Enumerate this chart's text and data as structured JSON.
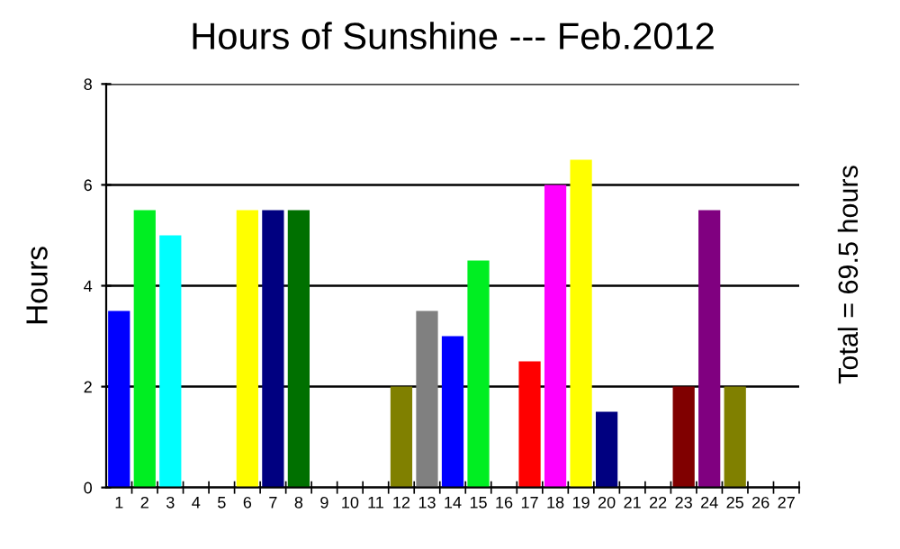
{
  "chart_data": {
    "type": "bar",
    "title": "Hours of Sunshine --- Feb.2012",
    "ylabel": "Hours",
    "annotations": [
      "Total = 69.5 hours"
    ],
    "categories": [
      "1",
      "2",
      "3",
      "4",
      "5",
      "6",
      "7",
      "8",
      "9",
      "10",
      "11",
      "12",
      "13",
      "14",
      "15",
      "16",
      "17",
      "18",
      "19",
      "20",
      "21",
      "22",
      "23",
      "24",
      "25",
      "26",
      "27"
    ],
    "values": [
      3.5,
      5.5,
      5,
      0,
      0,
      5.5,
      5.5,
      5.5,
      0,
      0,
      0,
      2,
      3.5,
      3,
      4.5,
      0,
      2.5,
      6,
      6.5,
      1.5,
      0,
      0,
      2,
      5.5,
      2,
      0,
      0
    ],
    "colors": [
      "#0000ff",
      "#00ee22",
      "#00ffff",
      "#000000",
      "#000000",
      "#ffff00",
      "#000080",
      "#007000",
      "#000000",
      "#000000",
      "#000000",
      "#808000",
      "#808080",
      "#0000ff",
      "#00ee22",
      "#000000",
      "#ff0000",
      "#ff00ff",
      "#ffff00",
      "#000080",
      "#000000",
      "#000000",
      "#800000",
      "#800080",
      "#808000",
      "#000000",
      "#000000"
    ],
    "ylim": [
      0,
      8
    ],
    "yticks": [
      0,
      2,
      4,
      6,
      8
    ],
    "grid": "y"
  }
}
